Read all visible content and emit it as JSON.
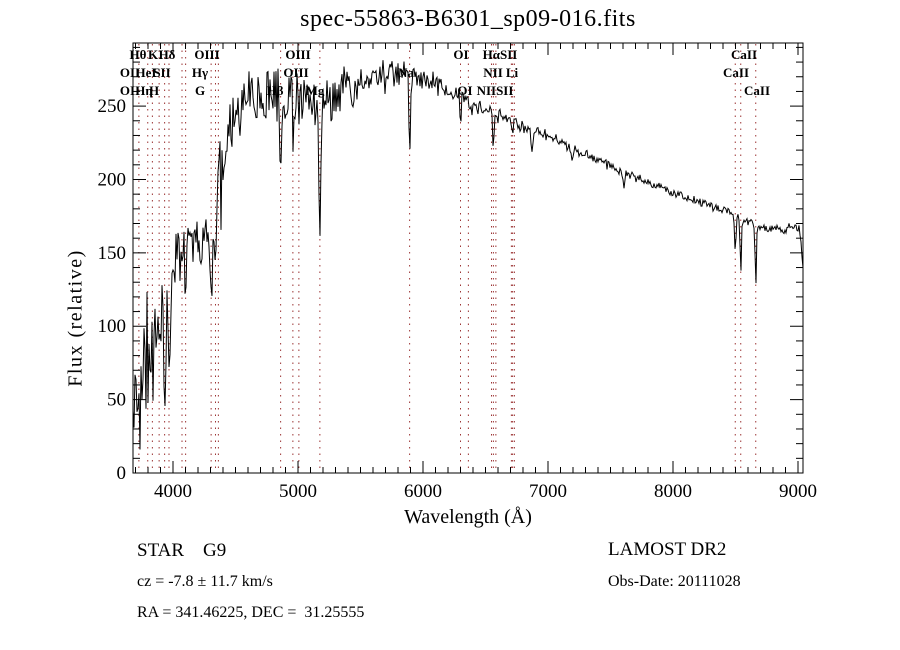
{
  "title": "spec-55863-B6301_sp09-016.fits",
  "footer": {
    "left": [
      "STAR    G9",
      "cz = -7.8 ± 11.7 km/s",
      "RA = 341.46225, DEC =  31.25555"
    ],
    "right": [
      "LAMOST DR2",
      "Obs-Date: 20111028"
    ]
  },
  "chart_data": {
    "type": "line",
    "title": "spec-55863-B6301_sp09-016.fits",
    "xlabel": "Wavelength (Å)",
    "ylabel": "Flux (relative)",
    "xlim": [
      3680,
      9040
    ],
    "ylim": [
      0,
      293
    ],
    "x_major_ticks": [
      4000,
      5000,
      6000,
      7000,
      8000,
      9000
    ],
    "x_minor_step": 100,
    "y_major_ticks": [
      0,
      50,
      100,
      150,
      200,
      250
    ],
    "y_minor_step": 10,
    "grid": false,
    "legend": "none",
    "line_color": "#000000",
    "marker_line_color": "#9b3333",
    "line_markers": {
      "wavelengths": [
        3727,
        3798,
        3835,
        3889,
        3933,
        3968,
        4072,
        4101,
        4305,
        4340,
        4363,
        4861,
        4959,
        5007,
        5175,
        5893,
        6300,
        6363,
        6548,
        6563,
        6583,
        6707,
        6717,
        6731,
        8498,
        8542,
        8662
      ],
      "labels": [
        {
          "text": "Hθ",
          "wl": 3720,
          "row": 1
        },
        {
          "text": "K",
          "wl": 3840,
          "row": 1
        },
        {
          "text": "Hδ",
          "wl": 3952,
          "row": 1
        },
        {
          "text": "OIII",
          "wl": 4272,
          "row": 1
        },
        {
          "text": "OIII",
          "wl": 5000,
          "row": 1
        },
        {
          "text": "OI",
          "wl": 6304,
          "row": 1
        },
        {
          "text": "HαSII",
          "wl": 6616,
          "row": 1
        },
        {
          "text": "CaII",
          "wl": 8568,
          "row": 1
        },
        {
          "text": "OII",
          "wl": 3656,
          "row": 2
        },
        {
          "text": "HeI",
          "wl": 3784,
          "row": 2
        },
        {
          "text": "SII",
          "wl": 3912,
          "row": 2
        },
        {
          "text": "Hγ",
          "wl": 4216,
          "row": 2
        },
        {
          "text": "OIII",
          "wl": 4984,
          "row": 2
        },
        {
          "text": "Na",
          "wl": 5864,
          "row": 2
        },
        {
          "text": "NII",
          "wl": 6560,
          "row": 2
        },
        {
          "text": "Li",
          "wl": 6712,
          "row": 2
        },
        {
          "text": "CaII",
          "wl": 8504,
          "row": 2
        },
        {
          "text": "OII",
          "wl": 3656,
          "row": 3
        },
        {
          "text": "Hη",
          "wl": 3768,
          "row": 3
        },
        {
          "text": "H",
          "wl": 3848,
          "row": 3
        },
        {
          "text": "G",
          "wl": 4216,
          "row": 3
        },
        {
          "text": "Hβ",
          "wl": 4816,
          "row": 3
        },
        {
          "text": "Mg",
          "wl": 5136,
          "row": 3
        },
        {
          "text": "OI",
          "wl": 6336,
          "row": 3
        },
        {
          "text": "NIISII",
          "wl": 6576,
          "row": 3
        },
        {
          "text": "CaII",
          "wl": 8672,
          "row": 3
        }
      ]
    },
    "spectrum": {
      "seed": 20111028,
      "continuum": [
        [
          3680,
          55
        ],
        [
          3720,
          65
        ],
        [
          3770,
          80
        ],
        [
          3820,
          85
        ],
        [
          3870,
          100
        ],
        [
          3920,
          115
        ],
        [
          3960,
          130
        ],
        [
          4000,
          148
        ],
        [
          4060,
          153
        ],
        [
          4120,
          157
        ],
        [
          4180,
          158
        ],
        [
          4240,
          163
        ],
        [
          4300,
          172
        ],
        [
          4360,
          195
        ],
        [
          4420,
          220
        ],
        [
          4480,
          238
        ],
        [
          4550,
          252
        ],
        [
          4650,
          255
        ],
        [
          4750,
          252
        ],
        [
          4850,
          255
        ],
        [
          4950,
          252
        ],
        [
          5050,
          253
        ],
        [
          5150,
          252
        ],
        [
          5250,
          260
        ],
        [
          5350,
          262
        ],
        [
          5450,
          263
        ],
        [
          5550,
          266
        ],
        [
          5650,
          269
        ],
        [
          5750,
          272
        ],
        [
          5850,
          275
        ],
        [
          5950,
          271
        ],
        [
          6050,
          267
        ],
        [
          6150,
          262
        ],
        [
          6250,
          257
        ],
        [
          6350,
          252
        ],
        [
          6450,
          249
        ],
        [
          6550,
          246
        ],
        [
          6650,
          242
        ],
        [
          6750,
          239
        ],
        [
          6850,
          235
        ],
        [
          6950,
          231
        ],
        [
          7050,
          227
        ],
        [
          7150,
          223
        ],
        [
          7250,
          219
        ],
        [
          7350,
          215
        ],
        [
          7450,
          211
        ],
        [
          7550,
          207
        ],
        [
          7650,
          203
        ],
        [
          7750,
          200
        ],
        [
          7850,
          197
        ],
        [
          7950,
          193
        ],
        [
          8050,
          190
        ],
        [
          8150,
          187
        ],
        [
          8250,
          184
        ],
        [
          8350,
          181
        ],
        [
          8450,
          177
        ],
        [
          8550,
          173
        ],
        [
          8650,
          170
        ],
        [
          8750,
          167
        ],
        [
          8850,
          166
        ],
        [
          8950,
          168
        ],
        [
          9010,
          166
        ],
        [
          9040,
          142
        ]
      ],
      "noise_amp": [
        [
          3680,
          50
        ],
        [
          3750,
          60
        ],
        [
          3820,
          55
        ],
        [
          3890,
          45
        ],
        [
          3960,
          38
        ],
        [
          4040,
          28
        ],
        [
          4140,
          24
        ],
        [
          4240,
          24
        ],
        [
          4340,
          38
        ],
        [
          4440,
          32
        ],
        [
          4540,
          28
        ],
        [
          4700,
          24
        ],
        [
          4850,
          22
        ],
        [
          5000,
          24
        ],
        [
          5200,
          20
        ],
        [
          5400,
          18
        ],
        [
          5600,
          15
        ],
        [
          5800,
          12
        ],
        [
          6000,
          10
        ],
        [
          6200,
          9
        ],
        [
          6350,
          8
        ],
        [
          6500,
          7
        ],
        [
          6700,
          6
        ],
        [
          6900,
          5
        ],
        [
          7100,
          4.5
        ],
        [
          7400,
          4
        ],
        [
          7800,
          3.5
        ],
        [
          8200,
          3.5
        ],
        [
          8600,
          4
        ],
        [
          9040,
          4
        ]
      ],
      "absorption_dips": [
        [
          3933,
          65,
          9
        ],
        [
          3968,
          55,
          9
        ],
        [
          4101,
          35,
          7
        ],
        [
          4227,
          25,
          6
        ],
        [
          4305,
          45,
          9
        ],
        [
          4340,
          45,
          7
        ],
        [
          4384,
          20,
          6
        ],
        [
          4861,
          55,
          5
        ],
        [
          4959,
          18,
          4
        ],
        [
          5007,
          18,
          4
        ],
        [
          5175,
          100,
          7
        ],
        [
          5270,
          20,
          5
        ],
        [
          5893,
          68,
          5
        ],
        [
          6300,
          18,
          4
        ],
        [
          6563,
          30,
          5
        ],
        [
          6717,
          12,
          4
        ],
        [
          6871,
          14,
          8
        ],
        [
          7190,
          8,
          8
        ],
        [
          7605,
          8,
          8
        ],
        [
          8498,
          28,
          5
        ],
        [
          8542,
          42,
          5
        ],
        [
          8662,
          42,
          5
        ]
      ]
    }
  }
}
